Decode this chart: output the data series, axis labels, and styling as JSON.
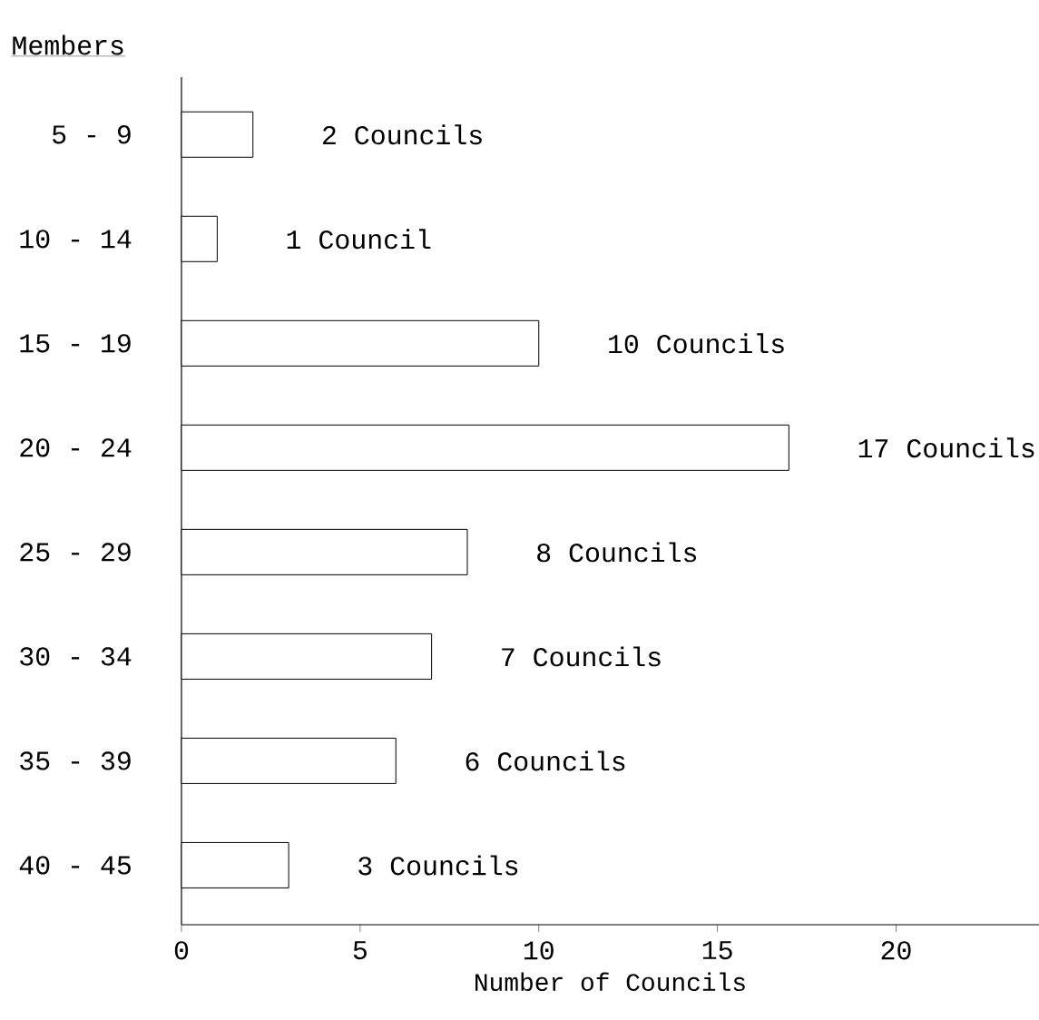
{
  "chart_data": {
    "type": "bar",
    "orientation": "horizontal",
    "xlabel": "Number of Councils",
    "ylabel": "Members",
    "categories": [
      "5 - 9",
      "10 - 14",
      "15 - 19",
      "20 - 24",
      "25 - 29",
      "30 - 34",
      "35 - 39",
      "40 - 45"
    ],
    "values": [
      2,
      1,
      10,
      17,
      8,
      7,
      6,
      3
    ],
    "value_labels": [
      "2 Councils",
      "1 Council",
      "10 Councils",
      "17 Councils",
      "8 Councils",
      "7 Councils",
      "6 Councils",
      "3 Councils"
    ],
    "color": "#000000",
    "xlim": [
      0,
      24
    ],
    "xticks": [
      0,
      5,
      10,
      15,
      20
    ]
  }
}
